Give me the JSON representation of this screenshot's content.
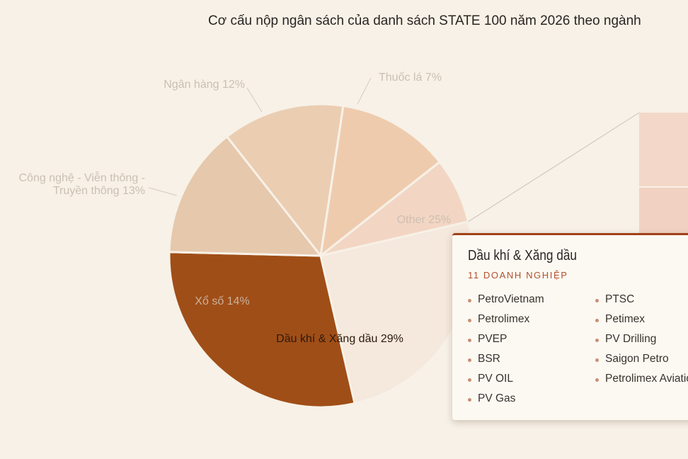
{
  "chart_data": {
    "type": "pie",
    "title": "Cơ cấu nộp ngân sách của danh sách STATE 100 năm 2026 theo ngành",
    "slices": [
      {
        "label": "Dầu khí & Xăng dầu",
        "value": 29,
        "display": "Dầu khí & Xăng dầu 29%",
        "color": "#a04e17"
      },
      {
        "label": "Xổ số",
        "value": 14,
        "display": "Xổ số 14%",
        "color": "#e6c8ac"
      },
      {
        "label": "Công nghệ - Viễn thông - Truyền thông",
        "value": 13,
        "display_lines": [
          "Công nghệ - Viễn thông -",
          "Truyền thông 13%"
        ],
        "color": "#ebcdb2"
      },
      {
        "label": "Ngân hàng",
        "value": 12,
        "display": "Ngân hàng 12%",
        "color": "#efcbae"
      },
      {
        "label": "Thuốc lá",
        "value": 7,
        "display": "Thuốc lá 7%",
        "color": "#f2d6c3"
      },
      {
        "label": "Other",
        "value": 25,
        "display": "Other 25%",
        "color": "#f5e8dc"
      }
    ],
    "breakdown_bar_colors": [
      "#f3d8c9",
      "#f1d2c2"
    ]
  },
  "tooltip": {
    "title": "Dầu khí & Xăng dầu",
    "subtitle": "11 DOANH NGHIỆP",
    "accent": "#a0411a",
    "items": [
      "PetroVietnam",
      "Petrolimex",
      "PVEP",
      "BSR",
      "PV OIL",
      "PV Gas",
      "PTSC",
      "Petimex",
      "PV Drilling",
      "Saigon Petro",
      "Petrolimex Aviation"
    ]
  }
}
